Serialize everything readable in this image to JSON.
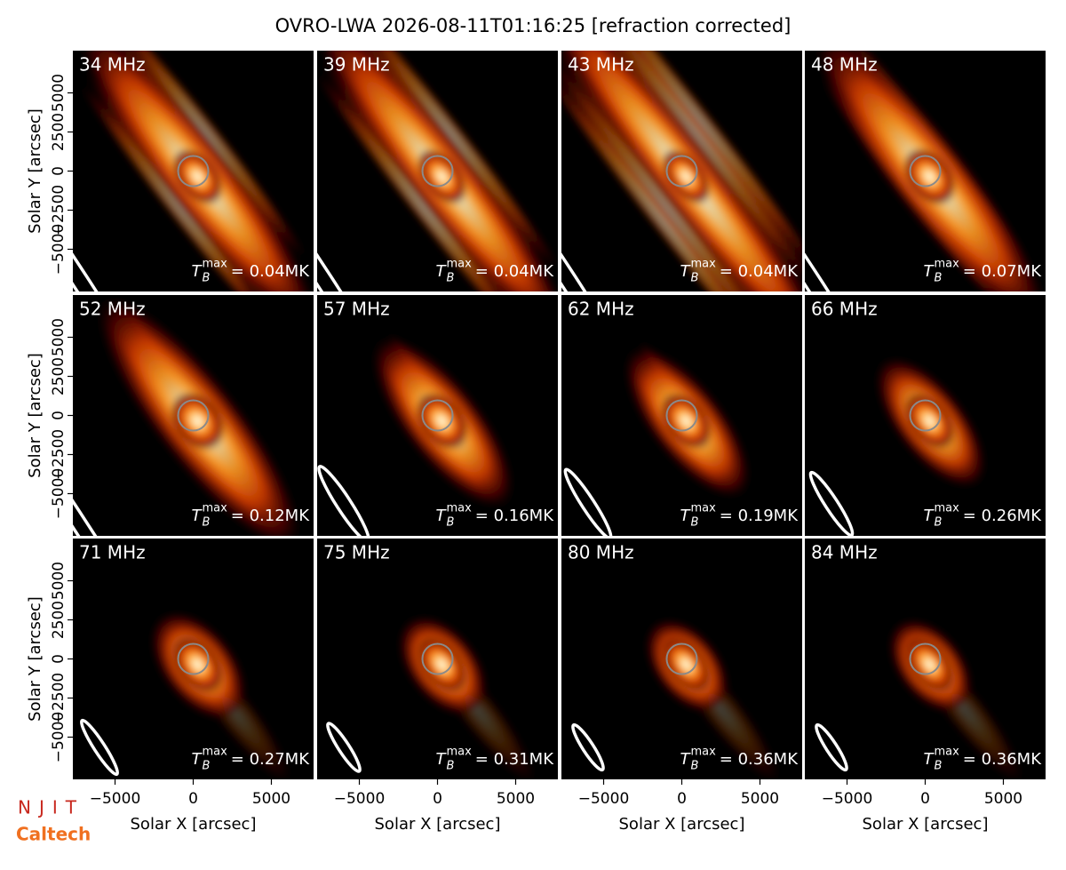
{
  "chart_data": {
    "type": "image_grid",
    "title": "OVRO-LWA 2026-08-11T01:16:25 [refraction corrected]",
    "xlabel": "Solar X [arcsec]",
    "ylabel": "Solar Y [arcsec]",
    "xlim": [
      -7700,
      7700
    ],
    "ylim": [
      -7700,
      7700
    ],
    "xticks": [
      {
        "value": -5000,
        "label": "−5000"
      },
      0,
      5000
    ],
    "yticks": [
      {
        "value": -5000,
        "label": "−5000"
      },
      {
        "value": -2500,
        "label": "−2500"
      },
      0,
      2500,
      5000
    ],
    "tb_symbol": {
      "base": "T",
      "sub": "B",
      "sup": "max"
    },
    "panels": [
      {
        "label": "34 MHz",
        "tb": "= 0.04MK"
      },
      {
        "label": "39 MHz",
        "tb": "= 0.04MK"
      },
      {
        "label": "43 MHz",
        "tb": "= 0.04MK"
      },
      {
        "label": "48 MHz",
        "tb": "= 0.07MK"
      },
      {
        "label": "52 MHz",
        "tb": "= 0.12MK"
      },
      {
        "label": "57 MHz",
        "tb": "= 0.16MK"
      },
      {
        "label": "62 MHz",
        "tb": "= 0.19MK"
      },
      {
        "label": "66 MHz",
        "tb": "= 0.26MK"
      },
      {
        "label": "71 MHz",
        "tb": "= 0.27MK"
      },
      {
        "label": "75 MHz",
        "tb": "= 0.31MK"
      },
      {
        "label": "80 MHz",
        "tb": "= 0.36MK"
      },
      {
        "label": "84 MHz",
        "tb": "= 0.36MK"
      }
    ]
  },
  "logos": [
    "NJIT",
    "Caltech"
  ]
}
